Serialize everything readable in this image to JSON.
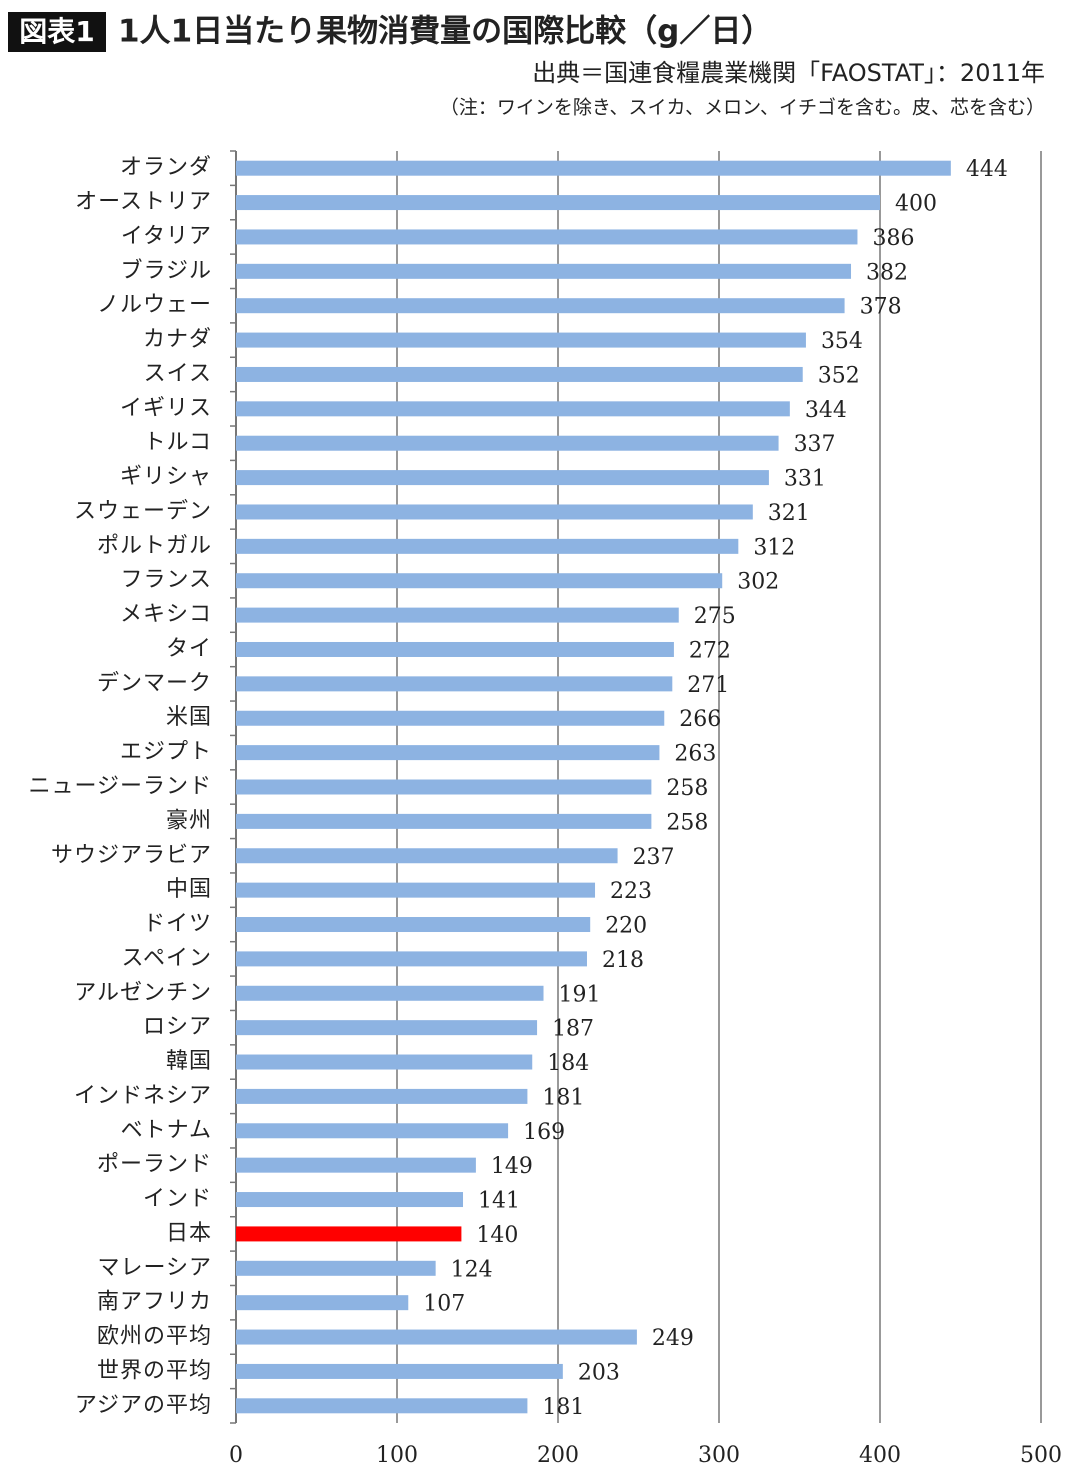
{
  "chart_data": {
    "type": "hbar",
    "badge": "図表1",
    "title": "1人1日当たり果物消費量の国際比較（g／日）",
    "source": "出典＝国連食糧農業機関「FAOSTAT」：2011年",
    "note": "（注：ワインを除き、スイカ、メロン、イチゴを含む。皮、芯を含む）",
    "categories": [
      "オランダ",
      "オーストリア",
      "イタリア",
      "ブラジル",
      "ノルウェー",
      "カナダ",
      "スイス",
      "イギリス",
      "トルコ",
      "ギリシャ",
      "スウェーデン",
      "ポルトガル",
      "フランス",
      "メキシコ",
      "タイ",
      "デンマーク",
      "米国",
      "エジプト",
      "ニュージーランド",
      "豪州",
      "サウジアラビア",
      "中国",
      "ドイツ",
      "スペイン",
      "アルゼンチン",
      "ロシア",
      "韓国",
      "インドネシア",
      "ベトナム",
      "ポーランド",
      "インド",
      "日本",
      "マレーシア",
      "南アフリカ",
      "欧州の平均",
      "世界の平均",
      "アジアの平均"
    ],
    "values": [
      444,
      400,
      386,
      382,
      378,
      354,
      352,
      344,
      337,
      331,
      321,
      312,
      302,
      275,
      272,
      271,
      266,
      263,
      258,
      258,
      237,
      223,
      220,
      218,
      191,
      187,
      184,
      181,
      169,
      149,
      141,
      140,
      124,
      107,
      249,
      203,
      181
    ],
    "colors": [
      "#8db3e2",
      "#8db3e2",
      "#8db3e2",
      "#8db3e2",
      "#8db3e2",
      "#8db3e2",
      "#8db3e2",
      "#8db3e2",
      "#8db3e2",
      "#8db3e2",
      "#8db3e2",
      "#8db3e2",
      "#8db3e2",
      "#8db3e2",
      "#8db3e2",
      "#8db3e2",
      "#8db3e2",
      "#8db3e2",
      "#8db3e2",
      "#8db3e2",
      "#8db3e2",
      "#8db3e2",
      "#8db3e2",
      "#8db3e2",
      "#8db3e2",
      "#8db3e2",
      "#8db3e2",
      "#8db3e2",
      "#8db3e2",
      "#8db3e2",
      "#8db3e2",
      "#ff0000",
      "#8db3e2",
      "#8db3e2",
      "#8db3e2",
      "#8db3e2",
      "#8db3e2"
    ],
    "xlim": [
      0,
      500
    ],
    "xticks": [
      0,
      100,
      200,
      300,
      400,
      500
    ],
    "grid": true
  }
}
